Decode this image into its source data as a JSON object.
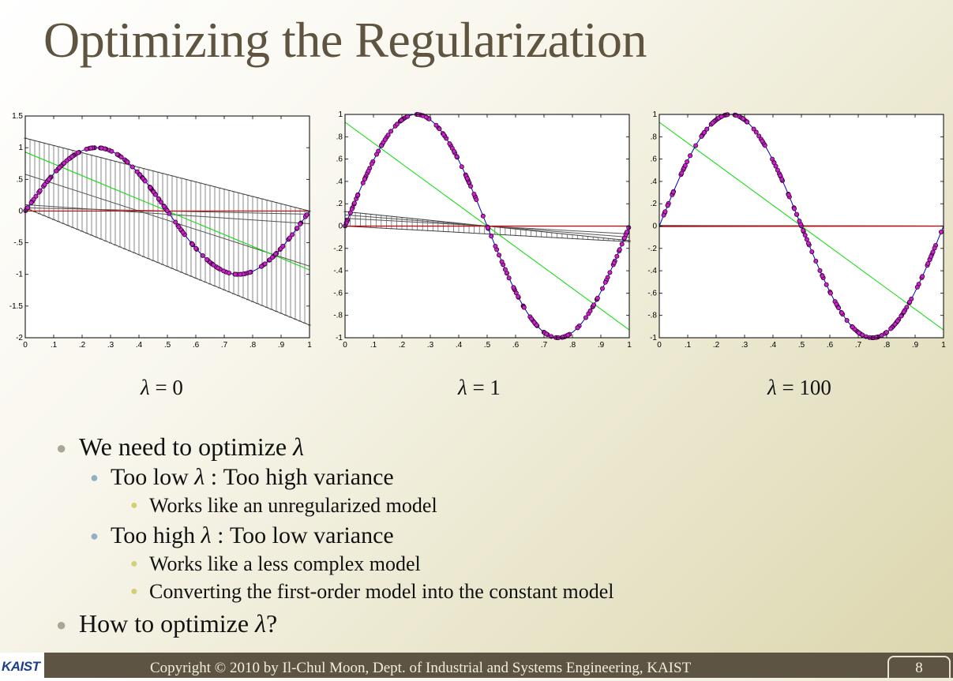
{
  "slide": {
    "title": "Optimizing the Regularization",
    "footer": {
      "copyright": "Copyright © 2010 by Il-Chul Moon, Dept. of Industrial and Systems Engineering, KAIST",
      "page": "8",
      "logo_text": "KAIST"
    },
    "captions": [
      {
        "symbol": "λ",
        "text": " = 0"
      },
      {
        "symbol": "λ",
        "text": " = 1"
      },
      {
        "symbol": "λ",
        "text": " = 100"
      }
    ],
    "bullets": [
      {
        "level": 1,
        "text": "We need to optimize ",
        "symbol": "λ",
        "suffix": ""
      },
      {
        "level": 2,
        "text": "Too low ",
        "symbol": "λ",
        "suffix": " : Too high variance"
      },
      {
        "level": 3,
        "text": "Works like an unregularized model",
        "symbol": "",
        "suffix": ""
      },
      {
        "level": 2,
        "text": "Too high ",
        "symbol": "λ",
        "suffix": " : Too low variance"
      },
      {
        "level": 3,
        "text": "Works like a less complex model",
        "symbol": "",
        "suffix": ""
      },
      {
        "level": 3,
        "text": "Converting the first-order model into the constant model",
        "symbol": "",
        "suffix": ""
      },
      {
        "level": 1,
        "text": "How to optimize ",
        "symbol": "λ",
        "suffix": "?"
      }
    ]
  },
  "colors": {
    "title": "#5e5440",
    "footer_bg": "#5e5443",
    "sine_points": "#cc22cc",
    "sine_line": "#0000cc",
    "fit_line": "#00dd00",
    "zero_line": "#cc0000",
    "error_bars": "#555555"
  },
  "chart_data": [
    {
      "type": "line",
      "xlim": [
        0,
        1
      ],
      "ylim": [
        -2,
        1.5
      ],
      "xticks": [
        0,
        0.1,
        0.2,
        0.3,
        0.4,
        0.5,
        0.6,
        0.7,
        0.8,
        0.9,
        1
      ],
      "yticks": [
        -2,
        -1.5,
        -1,
        -0.5,
        0,
        0.5,
        1,
        1.5
      ],
      "sine_amplitude": 1,
      "fit_line": {
        "intercept": 0.93,
        "slope": -1.86
      },
      "error_band": {
        "upper_intercept": 1.15,
        "upper_slope": -1.15,
        "lower_intercept": 0.05,
        "lower_slope": -1.85,
        "bars": 60
      },
      "middle_lines": [
        {
          "intercept": 0.58,
          "slope": -1.45
        },
        {
          "intercept": 0.1,
          "slope": -0.3
        },
        {
          "intercept": 0.05,
          "slope": -0.1
        }
      ]
    },
    {
      "type": "line",
      "xlim": [
        0,
        1
      ],
      "ylim": [
        -1,
        1
      ],
      "xticks": [
        0,
        0.1,
        0.2,
        0.3,
        0.4,
        0.5,
        0.6,
        0.7,
        0.8,
        0.9,
        1
      ],
      "yticks": [
        -1,
        -0.8,
        -0.6,
        -0.4,
        -0.2,
        0,
        0.2,
        0.4,
        0.6,
        0.8,
        1
      ],
      "sine_amplitude": 1,
      "fit_line": {
        "intercept": 0.93,
        "slope": -1.86
      },
      "error_band": {
        "upper_intercept": 0.13,
        "upper_slope": -0.26,
        "lower_intercept": 0.0,
        "lower_slope": -0.14,
        "bars": 55
      },
      "middle_lines": [
        {
          "intercept": 0.07,
          "slope": -0.14
        },
        {
          "intercept": 0.1,
          "slope": -0.2
        }
      ]
    },
    {
      "type": "line",
      "xlim": [
        0,
        1
      ],
      "ylim": [
        -1,
        1
      ],
      "xticks": [
        0,
        0.1,
        0.2,
        0.3,
        0.4,
        0.5,
        0.6,
        0.7,
        0.8,
        0.9,
        1
      ],
      "yticks": [
        -1,
        -0.8,
        -0.6,
        -0.4,
        -0.2,
        0,
        0.2,
        0.4,
        0.6,
        0.8,
        1
      ],
      "sine_amplitude": 1,
      "fit_line": {
        "intercept": 0.93,
        "slope": -1.86
      },
      "error_band": {
        "upper_intercept": 0.005,
        "upper_slope": -0.005,
        "lower_intercept": -0.005,
        "lower_slope": 0.005,
        "bars": 0
      },
      "middle_lines": [
        {
          "intercept": 0.004,
          "slope": -0.004
        }
      ]
    }
  ]
}
